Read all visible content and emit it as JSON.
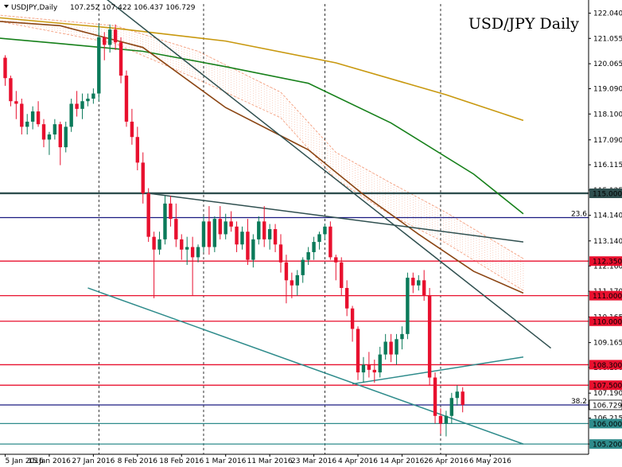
{
  "header": {
    "symbol": "USDJPY,Daily",
    "ohlc": "107.252 107.422 106.437 106.729"
  },
  "chart_data": {
    "type": "candlestick",
    "title": "USD/JPY Daily",
    "ylim": [
      104.8,
      122.4
    ],
    "y_ticks": [
      122.04,
      121.055,
      120.065,
      119.09,
      118.1,
      117.09,
      116.115,
      115.125,
      114.14,
      113.14,
      112.16,
      111.17,
      110.165,
      109.165,
      108.19,
      107.19,
      106.215,
      105.2
    ],
    "x_ticks": [
      "5 Jan 2016",
      "15 Jan 2016",
      "27 Jan 2016",
      "8 Feb 2016",
      "18 Feb 2016",
      "1 Mar 2016",
      "11 Mar 2016",
      "23 Mar 2016",
      "4 Apr 2016",
      "14 Apr 2016",
      "26 Apr 2016",
      "6 May 2016"
    ],
    "x_tick_bar_index": [
      0,
      8,
      16,
      24,
      32,
      40,
      48,
      56,
      64,
      72,
      80,
      88
    ],
    "separators_bar_index": [
      -3,
      17,
      36,
      58,
      79
    ],
    "colors": {
      "bull": "#0b7a5a",
      "bear": "#e8102e"
    },
    "candles": [
      [
        120.3,
        120.4,
        119.2,
        119.5
      ],
      [
        119.5,
        119.6,
        118.4,
        118.6
      ],
      [
        118.6,
        119.0,
        117.9,
        118.5
      ],
      [
        118.5,
        118.7,
        117.3,
        117.6
      ],
      [
        117.6,
        118.1,
        117.3,
        117.8
      ],
      [
        117.8,
        118.4,
        117.5,
        118.2
      ],
      [
        118.2,
        118.6,
        117.6,
        117.7
      ],
      [
        117.7,
        117.9,
        116.8,
        117.1
      ],
      [
        117.1,
        117.4,
        116.5,
        117.3
      ],
      [
        117.3,
        117.9,
        117.1,
        117.7
      ],
      [
        117.7,
        117.8,
        116.1,
        116.8
      ],
      [
        116.8,
        117.8,
        116.6,
        117.6
      ],
      [
        117.6,
        118.7,
        117.4,
        118.5
      ],
      [
        118.5,
        119.0,
        118.0,
        118.3
      ],
      [
        118.3,
        118.9,
        117.9,
        118.6
      ],
      [
        118.6,
        118.9,
        118.4,
        118.7
      ],
      [
        118.7,
        119.1,
        118.5,
        118.9
      ],
      [
        118.9,
        121.6,
        118.6,
        121.1
      ],
      [
        121.1,
        121.3,
        120.2,
        120.8
      ],
      [
        120.8,
        121.6,
        120.5,
        121.4
      ],
      [
        121.4,
        121.6,
        120.6,
        120.9
      ],
      [
        120.9,
        121.1,
        119.3,
        119.6
      ],
      [
        119.6,
        119.8,
        117.6,
        117.8
      ],
      [
        117.8,
        118.3,
        116.9,
        117.2
      ],
      [
        117.2,
        117.6,
        115.9,
        116.2
      ],
      [
        116.2,
        116.6,
        114.6,
        115.0
      ],
      [
        115.0,
        115.2,
        113.1,
        113.3
      ],
      [
        113.3,
        113.5,
        110.9,
        112.8
      ],
      [
        112.8,
        113.5,
        112.6,
        113.2
      ],
      [
        113.2,
        114.9,
        113.0,
        114.6
      ],
      [
        114.6,
        114.9,
        113.7,
        114.0
      ],
      [
        114.0,
        114.6,
        112.9,
        113.2
      ],
      [
        113.2,
        113.4,
        112.4,
        112.8
      ],
      [
        112.8,
        113.3,
        112.2,
        112.9
      ],
      [
        112.9,
        113.3,
        111.0,
        112.5
      ],
      [
        112.5,
        113.0,
        112.3,
        112.9
      ],
      [
        112.9,
        114.1,
        112.7,
        113.9
      ],
      [
        113.9,
        114.5,
        112.6,
        112.9
      ],
      [
        112.9,
        114.1,
        112.7,
        114.0
      ],
      [
        114.0,
        114.5,
        113.2,
        113.4
      ],
      [
        113.4,
        114.2,
        113.2,
        113.9
      ],
      [
        113.9,
        114.3,
        113.5,
        113.7
      ],
      [
        113.7,
        113.9,
        112.7,
        113.0
      ],
      [
        113.0,
        113.7,
        112.8,
        113.5
      ],
      [
        113.5,
        114.0,
        112.2,
        112.4
      ],
      [
        112.4,
        113.4,
        112.1,
        113.2
      ],
      [
        113.2,
        114.1,
        113.0,
        113.9
      ],
      [
        113.9,
        114.5,
        112.9,
        113.2
      ],
      [
        113.2,
        113.8,
        112.8,
        113.6
      ],
      [
        113.6,
        113.8,
        112.7,
        113.0
      ],
      [
        113.0,
        113.4,
        111.9,
        112.3
      ],
      [
        112.3,
        112.6,
        110.7,
        111.6
      ],
      [
        111.6,
        111.9,
        110.9,
        111.4
      ],
      [
        111.4,
        112.0,
        111.0,
        111.8
      ],
      [
        111.8,
        112.5,
        111.5,
        112.4
      ],
      [
        112.4,
        112.9,
        112.2,
        112.7
      ],
      [
        112.7,
        113.3,
        112.4,
        113.1
      ],
      [
        113.1,
        113.5,
        112.8,
        113.4
      ],
      [
        113.4,
        113.8,
        113.2,
        113.7
      ],
      [
        113.7,
        113.9,
        112.4,
        112.5
      ],
      [
        112.5,
        112.6,
        111.6,
        112.3
      ],
      [
        112.3,
        112.5,
        111.0,
        111.3
      ],
      [
        111.3,
        111.6,
        110.2,
        110.5
      ],
      [
        110.5,
        110.6,
        109.2,
        109.7
      ],
      [
        109.7,
        109.8,
        107.7,
        108.0
      ],
      [
        108.0,
        108.6,
        107.6,
        108.3
      ],
      [
        108.3,
        108.8,
        107.8,
        108.1
      ],
      [
        108.1,
        108.5,
        107.6,
        108.0
      ],
      [
        108.0,
        109.0,
        107.8,
        108.7
      ],
      [
        108.7,
        109.5,
        108.5,
        109.2
      ],
      [
        109.2,
        109.5,
        108.4,
        108.7
      ],
      [
        108.7,
        109.5,
        108.3,
        109.3
      ],
      [
        109.3,
        109.8,
        108.9,
        109.5
      ],
      [
        109.5,
        111.9,
        109.3,
        111.7
      ],
      [
        111.7,
        111.9,
        111.1,
        111.4
      ],
      [
        111.4,
        111.8,
        111.2,
        111.6
      ],
      [
        111.6,
        112.0,
        110.8,
        111.0
      ],
      [
        111.0,
        111.3,
        107.5,
        107.8
      ],
      [
        107.8,
        108.0,
        106.0,
        106.3
      ],
      [
        106.3,
        106.6,
        105.6,
        106.0
      ],
      [
        106.0,
        106.5,
        105.5,
        106.3
      ],
      [
        106.3,
        107.2,
        106.0,
        107.0
      ],
      [
        107.0,
        107.5,
        106.7,
        107.25
      ],
      [
        107.25,
        107.42,
        106.44,
        106.73
      ]
    ],
    "moving_averages": [
      {
        "color": "#c8980e",
        "bar_index": [
          -3,
          20,
          40,
          60,
          80,
          94
        ],
        "values": [
          121.9,
          121.45,
          120.95,
          120.1,
          118.85,
          117.85
        ]
      },
      {
        "color": "#16801a",
        "bar_index": [
          -3,
          10,
          25,
          40,
          55,
          70,
          85,
          94
        ],
        "values": [
          121.1,
          120.85,
          120.55,
          119.95,
          119.3,
          117.75,
          115.75,
          114.2
        ]
      },
      {
        "color": "#8b4513",
        "bar_index": [
          -3,
          10,
          25,
          40,
          55,
          65,
          75,
          85,
          94
        ],
        "values": [
          121.75,
          121.55,
          120.7,
          118.35,
          116.7,
          114.95,
          113.4,
          111.95,
          111.1
        ]
      }
    ],
    "ichimoku_cloud": {
      "color": "#f4a080",
      "bar_index": [
        -3,
        20,
        35,
        50,
        60,
        70,
        80,
        94
      ],
      "span_a": [
        122.0,
        121.55,
        120.55,
        118.95,
        116.6,
        115.4,
        114.25,
        112.45
      ],
      "span_b": [
        121.8,
        120.85,
        119.45,
        117.95,
        115.55,
        114.15,
        113.05,
        111.2
      ]
    },
    "horizontal_levels": [
      {
        "label": "115.000",
        "value": 115.0,
        "color": "#2f4f4f"
      },
      {
        "label": "112.350",
        "value": 112.35,
        "color": "#e8102e"
      },
      {
        "label": "111.000",
        "value": 111.0,
        "color": "#e8102e"
      },
      {
        "label": "110.000",
        "value": 110.0,
        "color": "#e8102e"
      },
      {
        "label": "108.300",
        "value": 108.3,
        "color": "#e8102e"
      },
      {
        "label": "107.500",
        "value": 107.5,
        "color": "#e8102e"
      },
      {
        "label": "106.000",
        "value": 106.0,
        "color": "#2e8b8b"
      },
      {
        "label": "105.200",
        "value": 105.2,
        "color": "#2e8b8b"
      }
    ],
    "fib_levels": [
      {
        "label": "23.6",
        "value": 114.05,
        "color": "#1a1a80"
      },
      {
        "label": "38.2",
        "value": 106.729,
        "color": "#1a1a80"
      }
    ],
    "price_label": {
      "label": "106.729",
      "value": 106.729
    },
    "trendlines": [
      {
        "color": "#2f4f4f",
        "x": [
          13,
          99
        ],
        "y": [
          123.5,
          108.95
        ]
      },
      {
        "color": "#2f4f4f",
        "x": [
          26,
          94
        ],
        "y": [
          115.0,
          113.1
        ]
      },
      {
        "color": "#2e8b8b",
        "x": [
          15,
          94
        ],
        "y": [
          111.3,
          105.2
        ]
      },
      {
        "color": "#2e8b8b",
        "x": [
          63,
          94
        ],
        "y": [
          107.55,
          108.6
        ]
      }
    ]
  }
}
